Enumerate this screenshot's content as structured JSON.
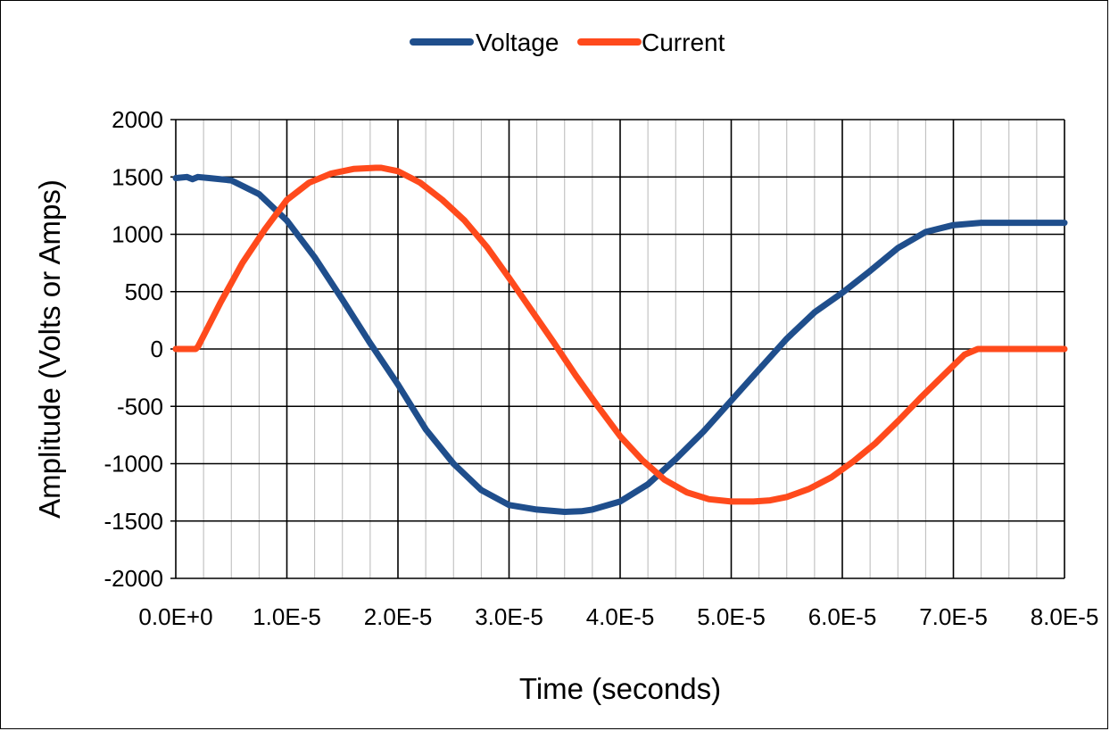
{
  "chart_data": {
    "type": "line",
    "title": "",
    "xlabel": "Time (seconds)",
    "ylabel": "Amplitude (Volts or Amps)",
    "xlim": [
      0,
      8e-05
    ],
    "ylim": [
      -2000,
      2000
    ],
    "x_ticks": [
      0,
      1e-05,
      2e-05,
      3e-05,
      4e-05,
      5e-05,
      6e-05,
      7e-05,
      8e-05
    ],
    "x_tick_labels": [
      "0.0E+0",
      "1.0E-5",
      "2.0E-5",
      "3.0E-5",
      "4.0E-5",
      "5.0E-5",
      "6.0E-5",
      "7.0E-5",
      "8.0E-5"
    ],
    "y_ticks": [
      2000,
      1500,
      1000,
      500,
      0,
      -500,
      -1000,
      -1500,
      -2000
    ],
    "y_tick_labels": [
      "2000",
      "1500",
      "1000",
      "500",
      "0",
      "-500",
      "-1000",
      "-1500",
      "-2000"
    ],
    "minor_x_step": 2.5e-06,
    "grid": true,
    "legend_position": "top-center",
    "series": [
      {
        "name": "Voltage",
        "color": "#1F4E8C",
        "x": [
          0,
          1e-06,
          1.5e-06,
          2e-06,
          3e-06,
          5e-06,
          7.5e-06,
          1e-05,
          1.25e-05,
          1.5e-05,
          1.75e-05,
          2e-05,
          2.25e-05,
          2.5e-05,
          2.75e-05,
          3e-05,
          3.25e-05,
          3.5e-05,
          3.65e-05,
          3.75e-05,
          4e-05,
          4.25e-05,
          4.5e-05,
          4.75e-05,
          5e-05,
          5.25e-05,
          5.5e-05,
          5.75e-05,
          6e-05,
          6.25e-05,
          6.5e-05,
          6.75e-05,
          7e-05,
          7.25e-05,
          7.5e-05,
          7.75e-05,
          8e-05
        ],
        "y": [
          1490,
          1500,
          1480,
          1500,
          1490,
          1470,
          1350,
          1120,
          800,
          430,
          50,
          -310,
          -700,
          -1000,
          -1230,
          -1360,
          -1400,
          -1420,
          -1415,
          -1400,
          -1330,
          -1180,
          -960,
          -720,
          -450,
          -180,
          90,
          320,
          490,
          680,
          880,
          1020,
          1080,
          1100,
          1100,
          1100,
          1100
        ]
      },
      {
        "name": "Current",
        "color": "#FF4A1C",
        "x": [
          0,
          1.8e-06,
          2e-06,
          4e-06,
          6e-06,
          8e-06,
          1e-05,
          1.2e-05,
          1.4e-05,
          1.6e-05,
          1.8e-05,
          1.85e-05,
          2e-05,
          2.2e-05,
          2.4e-05,
          2.6e-05,
          2.8e-05,
          3e-05,
          3.2e-05,
          3.4e-05,
          3.6e-05,
          3.8e-05,
          4e-05,
          4.2e-05,
          4.4e-05,
          4.6e-05,
          4.8e-05,
          5e-05,
          5.2e-05,
          5.35e-05,
          5.5e-05,
          5.7e-05,
          5.9e-05,
          6.1e-05,
          6.3e-05,
          6.5e-05,
          6.7e-05,
          6.9e-05,
          7.1e-05,
          7.22e-05,
          7.4e-05,
          8e-05
        ],
        "y": [
          0,
          0,
          20,
          400,
          750,
          1040,
          1300,
          1450,
          1530,
          1570,
          1580,
          1580,
          1550,
          1450,
          1300,
          1120,
          890,
          620,
          340,
          60,
          -230,
          -500,
          -760,
          -970,
          -1140,
          -1250,
          -1310,
          -1330,
          -1330,
          -1320,
          -1290,
          -1220,
          -1120,
          -980,
          -820,
          -630,
          -430,
          -240,
          -50,
          0,
          0,
          0
        ]
      }
    ]
  }
}
